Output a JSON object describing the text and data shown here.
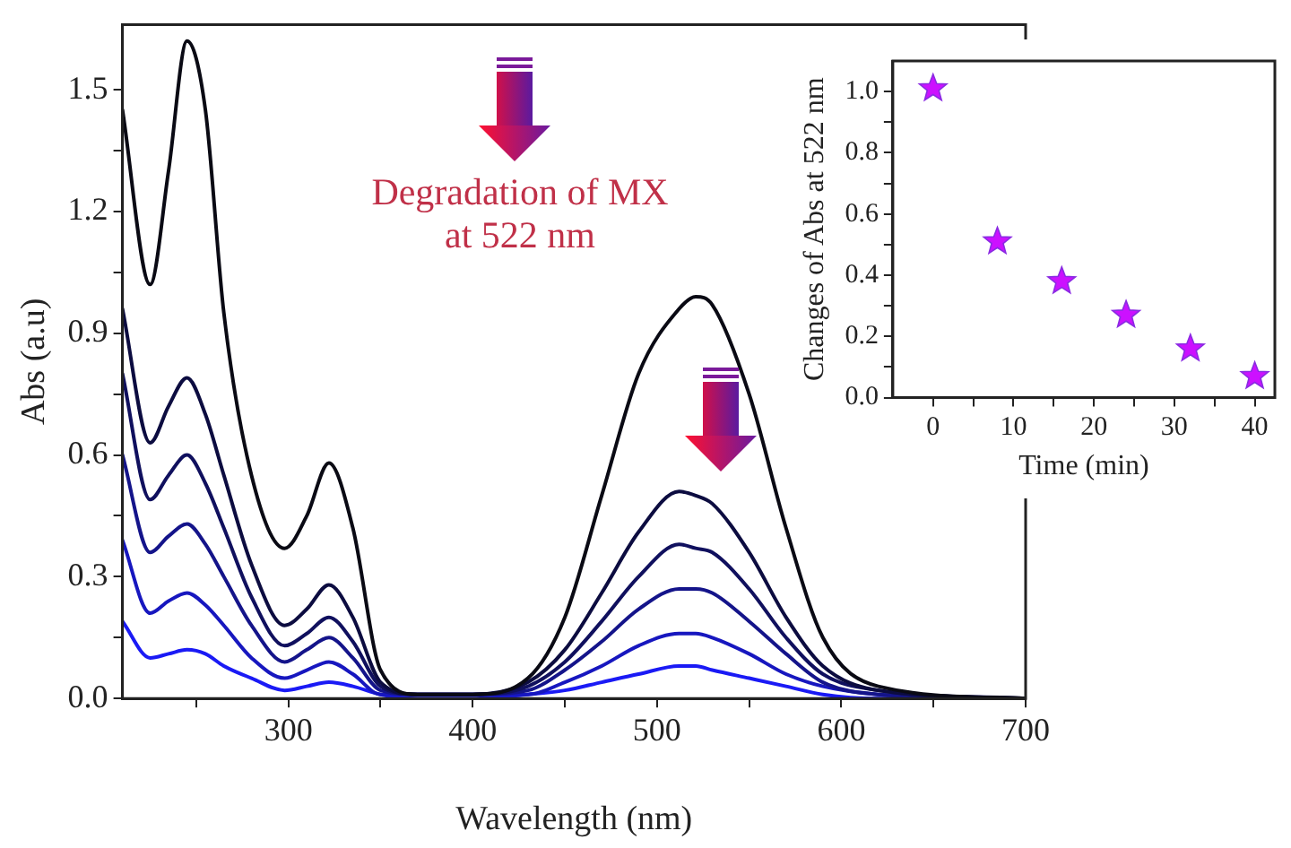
{
  "chart_data": [
    {
      "type": "line",
      "xlabel": "Wavelength (nm)",
      "ylabel": "Abs (a.u)",
      "annotations": [
        "Degradation of MX\nat 522 nm"
      ],
      "x": [
        210,
        225,
        235,
        245,
        255,
        265,
        280,
        298,
        310,
        322,
        335,
        350,
        370,
        400,
        430,
        450,
        470,
        490,
        512,
        521,
        530,
        550,
        570,
        590,
        620,
        700
      ],
      "series": [
        {
          "color": "#0a0a14",
          "values": [
            1.45,
            1.02,
            1.3,
            1.62,
            1.45,
            0.95,
            0.55,
            0.37,
            0.45,
            0.58,
            0.42,
            0.07,
            0.01,
            0.01,
            0.05,
            0.2,
            0.5,
            0.8,
            0.96,
            0.99,
            0.97,
            0.75,
            0.42,
            0.15,
            0.03,
            0
          ]
        },
        {
          "color": "#0c0c40",
          "values": [
            0.96,
            0.63,
            0.72,
            0.79,
            0.7,
            0.55,
            0.33,
            0.18,
            0.22,
            0.28,
            0.2,
            0.04,
            0.01,
            0.01,
            0.04,
            0.12,
            0.26,
            0.41,
            0.51,
            0.5,
            0.48,
            0.36,
            0.2,
            0.08,
            0.02,
            0
          ]
        },
        {
          "color": "#10105e",
          "values": [
            0.8,
            0.49,
            0.55,
            0.6,
            0.53,
            0.42,
            0.25,
            0.13,
            0.16,
            0.2,
            0.14,
            0.03,
            0.01,
            0.01,
            0.03,
            0.09,
            0.19,
            0.3,
            0.38,
            0.37,
            0.36,
            0.27,
            0.15,
            0.06,
            0.02,
            0
          ]
        },
        {
          "color": "#14148a",
          "values": [
            0.6,
            0.36,
            0.4,
            0.43,
            0.38,
            0.3,
            0.18,
            0.09,
            0.12,
            0.15,
            0.1,
            0.02,
            0.01,
            0.01,
            0.02,
            0.07,
            0.14,
            0.22,
            0.27,
            0.27,
            0.26,
            0.19,
            0.11,
            0.04,
            0.01,
            0
          ]
        },
        {
          "color": "#1717bf",
          "values": [
            0.39,
            0.21,
            0.24,
            0.26,
            0.23,
            0.18,
            0.1,
            0.05,
            0.07,
            0.09,
            0.06,
            0.01,
            0.01,
            0.01,
            0.01,
            0.04,
            0.08,
            0.13,
            0.16,
            0.16,
            0.15,
            0.11,
            0.06,
            0.03,
            0.01,
            0
          ]
        },
        {
          "color": "#1a1af5",
          "values": [
            0.19,
            0.1,
            0.11,
            0.12,
            0.11,
            0.08,
            0.05,
            0.02,
            0.03,
            0.04,
            0.03,
            0.01,
            0,
            0,
            0.01,
            0.02,
            0.04,
            0.06,
            0.08,
            0.08,
            0.07,
            0.05,
            0.03,
            0.01,
            0,
            0
          ]
        }
      ],
      "xlim": [
        210,
        700
      ],
      "ylim": [
        0,
        1.66
      ],
      "xticks": [
        {
          "value": 250,
          "label": null
        },
        300,
        {
          "value": 350,
          "label": null
        },
        400,
        {
          "value": 450,
          "label": null
        },
        500,
        {
          "value": 550,
          "label": null
        },
        600,
        {
          "value": 650,
          "label": null
        },
        700
      ],
      "yticks": [
        {
          "value": 0,
          "label": "0.0"
        },
        {
          "value": 0.15,
          "label": null
        },
        {
          "value": 0.3,
          "label": "0.3"
        },
        {
          "value": 0.45,
          "label": null
        },
        {
          "value": 0.6,
          "label": "0.6"
        },
        {
          "value": 0.75,
          "label": null
        },
        {
          "value": 0.9,
          "label": "0.9"
        },
        {
          "value": 1.05,
          "label": null
        },
        {
          "value": 1.2,
          "label": "1.2"
        },
        {
          "value": 1.35,
          "label": null
        },
        {
          "value": 1.5,
          "label": "1.5"
        }
      ],
      "line_style": "solid",
      "marker": "none"
    },
    {
      "type": "scatter",
      "xlabel": "Time (min)",
      "ylabel": "Changes of Abs at 522 nm",
      "x": [
        0,
        8,
        16,
        24,
        32,
        40
      ],
      "series": [
        {
          "color": "#cc11ff",
          "values": [
            1.01,
            0.51,
            0.38,
            0.27,
            0.16,
            0.07
          ]
        }
      ],
      "xlim": [
        -5,
        42.5
      ],
      "ylim": [
        0,
        1.1
      ],
      "xticks": [
        0,
        {
          "value": 5,
          "label": null
        },
        10,
        {
          "value": 15,
          "label": null
        },
        20,
        {
          "value": 25,
          "label": null
        },
        30,
        {
          "value": 35,
          "label": null
        },
        40
      ],
      "yticks": [
        {
          "value": 0,
          "label": "0.0"
        },
        {
          "value": 0.1,
          "label": null
        },
        {
          "value": 0.2,
          "label": "0.2"
        },
        {
          "value": 0.3,
          "label": null
        },
        {
          "value": 0.4,
          "label": "0.4"
        },
        {
          "value": 0.5,
          "label": null
        },
        {
          "value": 0.6,
          "label": "0.6"
        },
        {
          "value": 0.7,
          "label": null
        },
        {
          "value": 0.8,
          "label": "0.8"
        },
        {
          "value": 0.9,
          "label": null
        },
        {
          "value": 1.0,
          "label": "1.0"
        }
      ],
      "marker": "star"
    }
  ]
}
